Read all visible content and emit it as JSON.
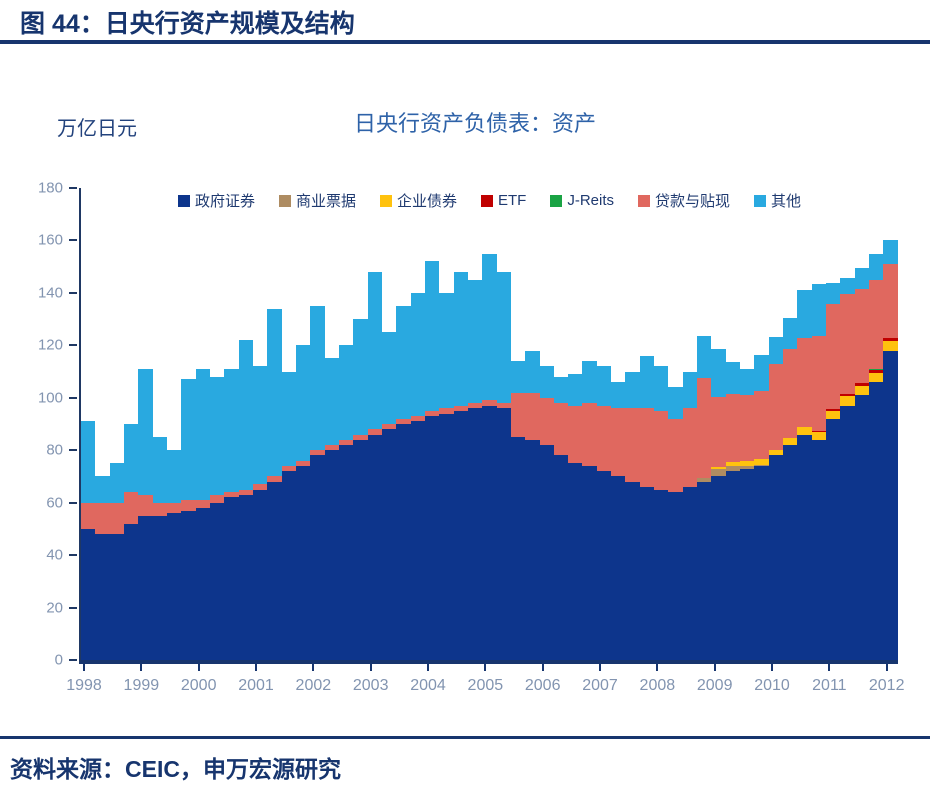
{
  "header": {
    "title": "图 44：日央行资产规模及结构"
  },
  "chart": {
    "unit_label": "万亿日元",
    "title": "日央行资产负债表：资产"
  },
  "footer": {
    "source": "资料来源：CEIC，申万宏源研究"
  },
  "colors": {
    "heading_navy": "#17356E",
    "rule_navy": "#17356E",
    "axis_line": "#1F3864",
    "tick_label": "#8294B0",
    "chart_title_blue": "#2E62A8",
    "legend_text": "#1F3A70"
  },
  "chart_data": {
    "type": "bar",
    "stacked": true,
    "title": "日央行资产负债表：资产",
    "ylabel": "万亿日元",
    "xlabel": "",
    "ylim": [
      0,
      180
    ],
    "ytick_step": 20,
    "grid": false,
    "legend_position": "top",
    "x_years": [
      "1998",
      "1999",
      "2000",
      "2001",
      "2002",
      "2003",
      "2004",
      "2005",
      "2006",
      "2007",
      "2008",
      "2009",
      "2010",
      "2011",
      "2012"
    ],
    "categories": [
      "1998Q1",
      "1998Q2",
      "1998Q3",
      "1998Q4",
      "1999Q1",
      "1999Q2",
      "1999Q3",
      "1999Q4",
      "2000Q1",
      "2000Q2",
      "2000Q3",
      "2000Q4",
      "2001Q1",
      "2001Q2",
      "2001Q3",
      "2001Q4",
      "2002Q1",
      "2002Q2",
      "2002Q3",
      "2002Q4",
      "2003Q1",
      "2003Q2",
      "2003Q3",
      "2003Q4",
      "2004Q1",
      "2004Q2",
      "2004Q3",
      "2004Q4",
      "2005Q1",
      "2005Q2",
      "2005Q3",
      "2005Q4",
      "2006Q1",
      "2006Q2",
      "2006Q3",
      "2006Q4",
      "2007Q1",
      "2007Q2",
      "2007Q3",
      "2007Q4",
      "2008Q1",
      "2008Q2",
      "2008Q3",
      "2008Q4",
      "2009Q1",
      "2009Q2",
      "2009Q3",
      "2009Q4",
      "2010Q1",
      "2010Q2",
      "2010Q3",
      "2010Q4",
      "2011Q1",
      "2011Q2",
      "2011Q3",
      "2011Q4",
      "2012Q1"
    ],
    "series": [
      {
        "name": "政府证券",
        "color": "#0D358C",
        "values": [
          50,
          48,
          48,
          52,
          55,
          55,
          56,
          57,
          58,
          60,
          62,
          63,
          65,
          68,
          72,
          74,
          78,
          80,
          82,
          84,
          86,
          88,
          90,
          91,
          93,
          94,
          95,
          96,
          97,
          96,
          85,
          84,
          82,
          78,
          75,
          74,
          72,
          70,
          68,
          66,
          65,
          64,
          66,
          68,
          70,
          72,
          73,
          74,
          78,
          82,
          86,
          84,
          92,
          97,
          101,
          106,
          118
        ]
      },
      {
        "name": "商业票据",
        "color": "#AE8C62",
        "values": [
          0,
          0,
          0,
          0,
          0,
          0,
          0,
          0,
          0,
          0,
          0,
          0,
          0,
          0,
          0,
          0,
          0,
          0,
          0,
          0,
          0,
          0,
          0,
          0,
          0,
          0,
          0,
          0,
          0,
          0,
          0,
          0,
          0,
          0,
          0,
          0,
          0,
          0,
          0,
          0,
          0,
          0,
          0,
          1.5,
          3,
          2,
          1,
          0.5,
          0,
          0,
          0,
          0,
          0,
          0,
          0,
          0,
          0
        ]
      },
      {
        "name": "企业债券",
        "color": "#FFC20E",
        "values": [
          0,
          0,
          0,
          0,
          0,
          0,
          0,
          0,
          0,
          0,
          0,
          0,
          0,
          0,
          0,
          0,
          0,
          0,
          0,
          0,
          0,
          0,
          0,
          0,
          0,
          0,
          0,
          0,
          0,
          0,
          0,
          0,
          0,
          0,
          0,
          0,
          0,
          0,
          0,
          0,
          0,
          0,
          0,
          0,
          0.5,
          1.5,
          2,
          2,
          2,
          2.5,
          3,
          3,
          3,
          3.5,
          3.5,
          3.5,
          3.5
        ]
      },
      {
        "name": "ETF",
        "color": "#C00000",
        "values": [
          0,
          0,
          0,
          0,
          0,
          0,
          0,
          0,
          0,
          0,
          0,
          0,
          0,
          0,
          0,
          0,
          0,
          0,
          0,
          0,
          0,
          0,
          0,
          0,
          0,
          0,
          0,
          0,
          0,
          0,
          0,
          0,
          0,
          0,
          0,
          0,
          0,
          0,
          0,
          0,
          0,
          0,
          0,
          0,
          0,
          0,
          0,
          0,
          0,
          0,
          0,
          0.5,
          0.8,
          1,
          1,
          1.2,
          1.4
        ]
      },
      {
        "name": "J-Reits",
        "color": "#1AA344",
        "values": [
          0,
          0,
          0,
          0,
          0,
          0,
          0,
          0,
          0,
          0,
          0,
          0,
          0,
          0,
          0,
          0,
          0,
          0,
          0,
          0,
          0,
          0,
          0,
          0,
          0,
          0,
          0,
          0,
          0,
          0,
          0,
          0,
          0,
          0,
          0,
          0,
          0,
          0,
          0,
          0,
          0,
          0,
          0,
          0,
          0,
          0,
          0,
          0,
          0,
          0,
          0,
          0,
          0.1,
          0.1,
          0.1,
          0.1,
          0.1
        ]
      },
      {
        "name": "贷款与贴现",
        "color": "#E0685F",
        "values": [
          10,
          12,
          12,
          12,
          8,
          5,
          4,
          4,
          3,
          3,
          2,
          2,
          2,
          2,
          2,
          2,
          2,
          2,
          2,
          2,
          2,
          2,
          2,
          2,
          2,
          2,
          2,
          2,
          2,
          2,
          17,
          18,
          18,
          20,
          22,
          24,
          25,
          26,
          28,
          30,
          30,
          28,
          30,
          38,
          27,
          26,
          25,
          26,
          33,
          34,
          34,
          36,
          40,
          38,
          36,
          34,
          28
        ]
      },
      {
        "name": "其他",
        "color": "#29A9E0",
        "values": [
          31,
          10,
          15,
          26,
          48,
          25,
          20,
          46,
          50,
          45,
          47,
          57,
          45,
          64,
          36,
          44,
          55,
          33,
          36,
          44,
          60,
          35,
          43,
          47,
          57,
          44,
          51,
          47,
          56,
          50,
          12,
          16,
          12,
          10,
          12,
          16,
          15,
          10,
          14,
          20,
          17,
          12,
          14,
          16,
          18,
          12,
          10,
          14,
          10,
          12,
          18,
          20,
          8,
          6,
          8,
          10,
          9
        ]
      }
    ]
  }
}
